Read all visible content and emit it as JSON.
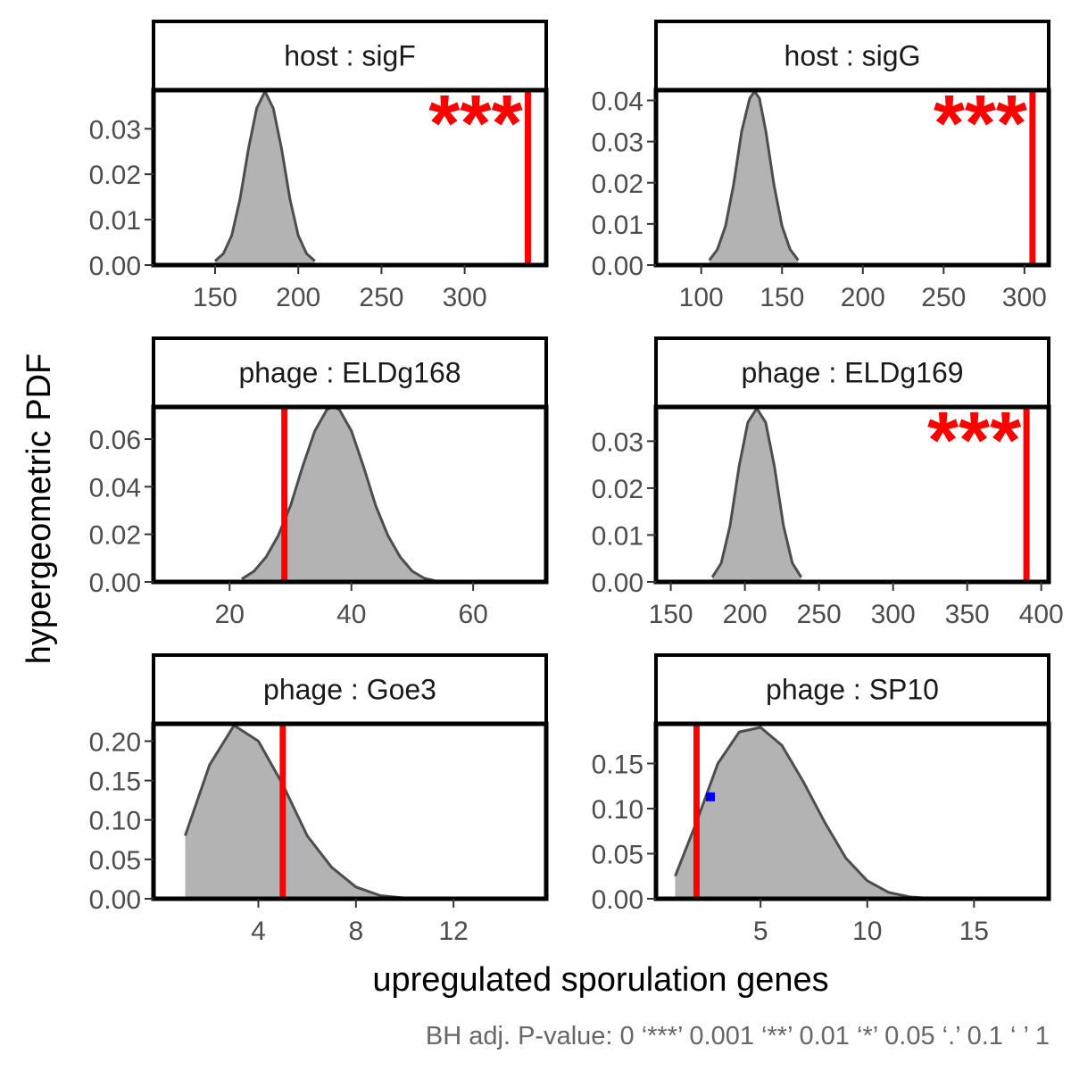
{
  "chart_data": {
    "type": "area",
    "xlabel": "upregulated sporulation genes",
    "ylabel": "hypergeometric PDF",
    "caption": "BH adj. P-value: 0 ‘***’ 0.001 ‘**’ 0.01 ‘*’ 0.05 ‘.’ 0.1 ‘ ’ 1",
    "colors": {
      "density_fill": "#b3b3b3",
      "density_line": "#4d4d4d",
      "observed_line": "#ff0000",
      "point": "#0000ff"
    },
    "panels": [
      {
        "strip": "host : sigF",
        "xlim": [
          113,
          349
        ],
        "ylim": [
          0,
          0.0385
        ],
        "xticks": [
          150,
          200,
          250,
          300
        ],
        "yticks": [
          0,
          0.01,
          0.02,
          0.03
        ],
        "ytick_labels": [
          "0.00",
          "0.01",
          "0.02",
          "0.03"
        ],
        "density_x": [
          150,
          155,
          160,
          165,
          170,
          175,
          180,
          185,
          190,
          195,
          200,
          205,
          210
        ],
        "density_y": [
          0.0009,
          0.0025,
          0.0065,
          0.0145,
          0.0255,
          0.0345,
          0.0382,
          0.0345,
          0.0255,
          0.0145,
          0.0065,
          0.0025,
          0.0009
        ],
        "observed": 338,
        "signif": "***"
      },
      {
        "strip": "host : sigG",
        "xlim": [
          72,
          315
        ],
        "ylim": [
          0,
          0.0425
        ],
        "xticks": [
          100,
          150,
          200,
          250,
          300
        ],
        "yticks": [
          0,
          0.01,
          0.02,
          0.03,
          0.04
        ],
        "ytick_labels": [
          "0.00",
          "0.01",
          "0.02",
          "0.03",
          "0.04"
        ],
        "density_x": [
          105,
          110,
          115,
          120,
          125,
          130,
          133,
          136,
          140,
          145,
          150,
          155,
          160
        ],
        "density_y": [
          0.0012,
          0.0038,
          0.0095,
          0.0195,
          0.0325,
          0.0405,
          0.0422,
          0.0405,
          0.0325,
          0.0195,
          0.0095,
          0.0038,
          0.0012
        ],
        "observed": 305,
        "signif": "***"
      },
      {
        "strip": "phage : ELDg168",
        "xlim": [
          7.5,
          72
        ],
        "ylim": [
          0,
          0.0735
        ],
        "xticks": [
          20,
          40,
          60
        ],
        "yticks": [
          0,
          0.02,
          0.04,
          0.06
        ],
        "ytick_labels": [
          "0.00",
          "0.02",
          "0.04",
          "0.06"
        ],
        "density_x": [
          22,
          24,
          26,
          28,
          30,
          32,
          34,
          36,
          37,
          38,
          40,
          42,
          44,
          46,
          48,
          50,
          52,
          54
        ],
        "density_y": [
          0.0012,
          0.0045,
          0.0105,
          0.0195,
          0.032,
          0.0485,
          0.0635,
          0.0725,
          0.0735,
          0.0725,
          0.0635,
          0.0485,
          0.032,
          0.0195,
          0.0105,
          0.0045,
          0.0015,
          0.0003
        ],
        "observed": 29,
        "signif": ""
      },
      {
        "strip": "phage : ELDg169",
        "xlim": [
          140,
          405
        ],
        "ylim": [
          0,
          0.0373
        ],
        "xticks": [
          150,
          200,
          250,
          300,
          350,
          400
        ],
        "yticks": [
          0,
          0.01,
          0.02,
          0.03
        ],
        "ytick_labels": [
          "0.00",
          "0.01",
          "0.02",
          "0.03"
        ],
        "density_x": [
          178,
          184,
          190,
          196,
          202,
          208,
          214,
          220,
          226,
          232,
          238
        ],
        "density_y": [
          0.001,
          0.004,
          0.012,
          0.0245,
          0.034,
          0.037,
          0.034,
          0.0245,
          0.012,
          0.004,
          0.001
        ],
        "observed": 390,
        "signif": "***"
      },
      {
        "strip": "phage : Goe3",
        "xlim": [
          -0.3,
          15.8
        ],
        "ylim": [
          0,
          0.222
        ],
        "xticks": [
          4,
          8,
          12
        ],
        "yticks": [
          0,
          0.05,
          0.1,
          0.15,
          0.2
        ],
        "ytick_labels": [
          "0.00",
          "0.05",
          "0.10",
          "0.15",
          "0.20"
        ],
        "density_x": [
          1,
          2,
          3,
          4,
          5,
          6,
          7,
          8,
          9,
          10,
          11
        ],
        "density_y": [
          0.08,
          0.17,
          0.22,
          0.2,
          0.145,
          0.08,
          0.04,
          0.015,
          0.004,
          0.001,
          0.0002
        ],
        "observed": 5,
        "signif": ""
      },
      {
        "strip": "phage : SP10",
        "xlim": [
          0.1,
          18.5
        ],
        "ylim": [
          0,
          0.194
        ],
        "xticks": [
          5,
          10,
          15
        ],
        "yticks": [
          0,
          0.05,
          0.1,
          0.15
        ],
        "ytick_labels": [
          "0.00",
          "0.05",
          "0.10",
          "0.15"
        ],
        "density_x": [
          1,
          2,
          3,
          4,
          5,
          6,
          7,
          8,
          9,
          10,
          11,
          12,
          13
        ],
        "density_y": [
          0.025,
          0.085,
          0.15,
          0.185,
          0.19,
          0.17,
          0.13,
          0.085,
          0.045,
          0.02,
          0.007,
          0.002,
          0.0005
        ],
        "observed": 2,
        "signif": "",
        "point": {
          "x": 2.65,
          "y": 0.113
        }
      }
    ]
  }
}
